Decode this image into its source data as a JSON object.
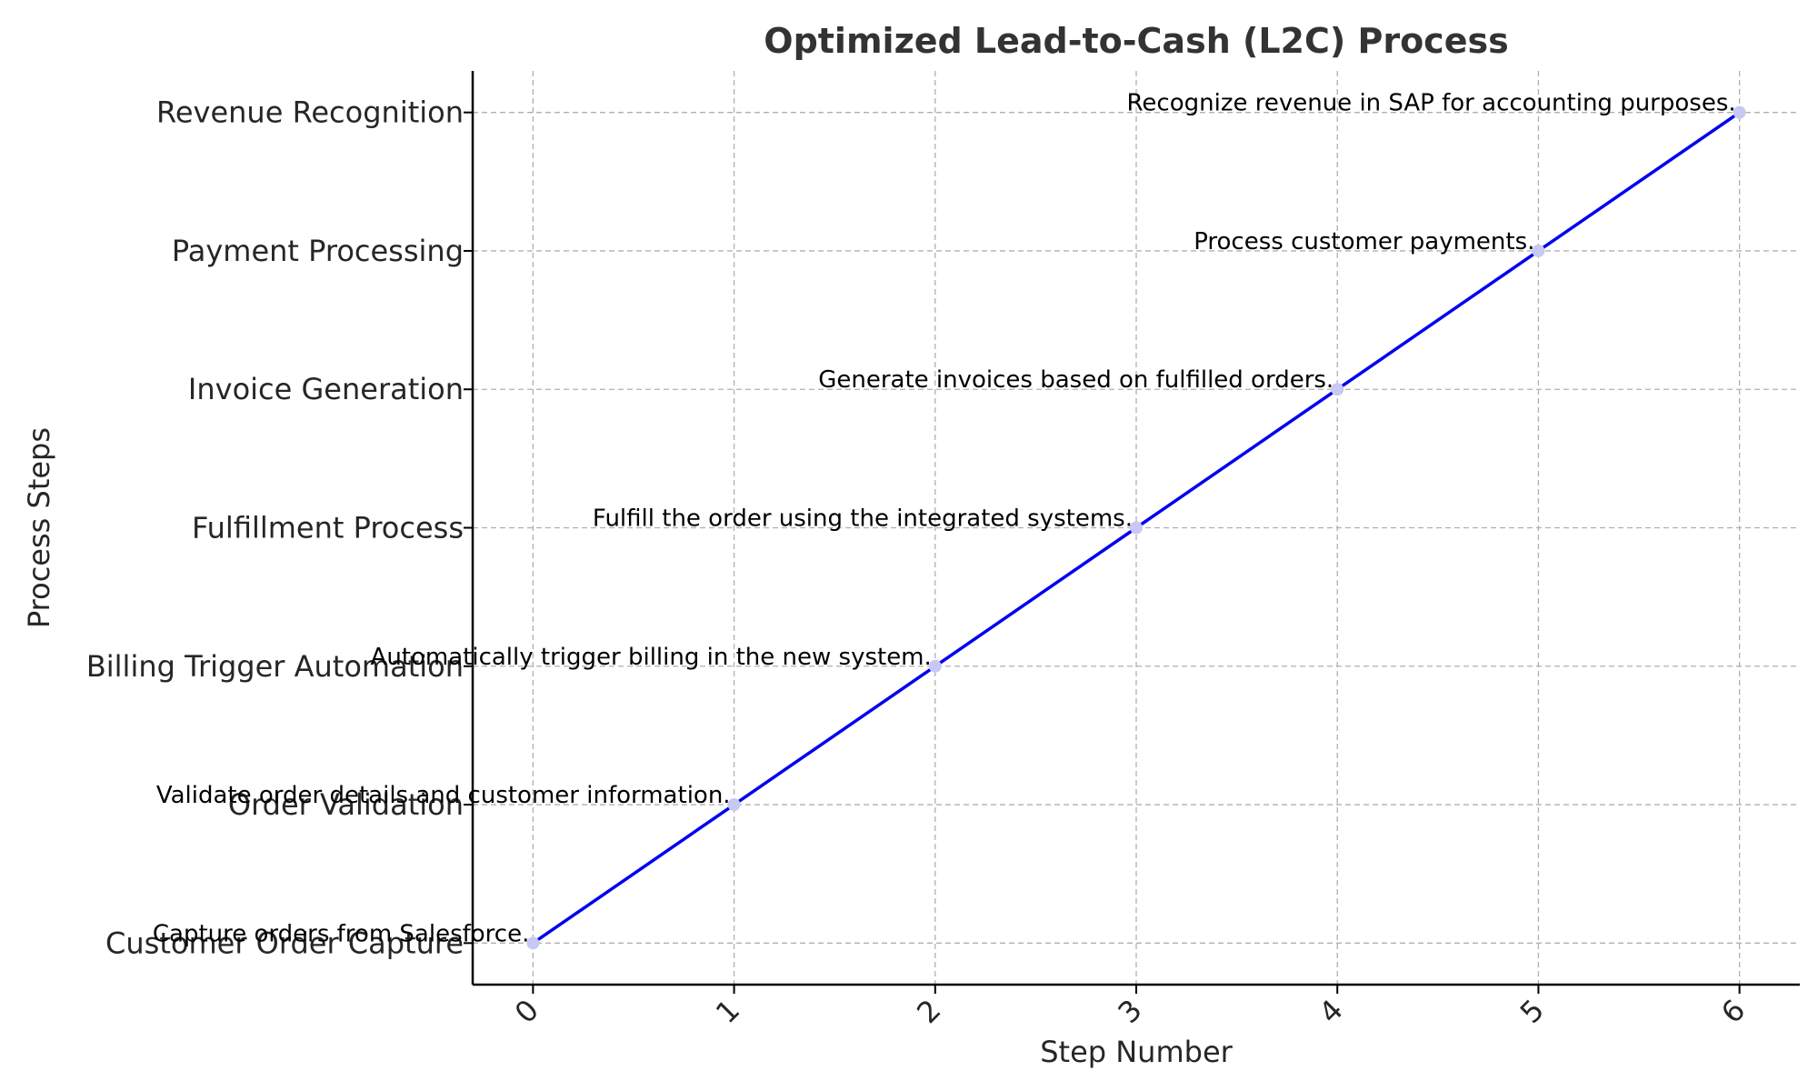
{
  "chart_data": {
    "type": "line",
    "title": "Optimized Lead-to-Cash (L2C) Process",
    "xlabel": "Step Number",
    "ylabel": "Process Steps",
    "x_ticks": [
      "0",
      "1",
      "2",
      "3",
      "4",
      "5",
      "6"
    ],
    "categories": [
      "Customer Order Capture",
      "Order Validation",
      "Billing Trigger Automation",
      "Fulfillment Process",
      "Invoice Generation",
      "Payment Processing",
      "Revenue Recognition"
    ],
    "series": [
      {
        "x": [
          0,
          1,
          2,
          3,
          4,
          5,
          6
        ],
        "y": [
          "Customer Order Capture",
          "Order Validation",
          "Billing Trigger Automation",
          "Fulfillment Process",
          "Invoice Generation",
          "Payment Processing",
          "Revenue Recognition"
        ]
      }
    ],
    "annotations": [
      "Capture orders from Salesforce.",
      "Validate order details and customer information.",
      "Automatically trigger billing in the new system.",
      "Fulfill the order using the integrated systems.",
      "Generate invoices based on fulfilled orders.",
      "Process customer payments.",
      "Recognize revenue in SAP for accounting purposes."
    ],
    "xlim": [
      -0.3,
      6.3
    ],
    "grid": true,
    "colors": {
      "line": "#0000ee",
      "marker": "#c8c8f5",
      "grid": "#b0b0b0",
      "ytick_faded": "#c8c8c8"
    }
  }
}
